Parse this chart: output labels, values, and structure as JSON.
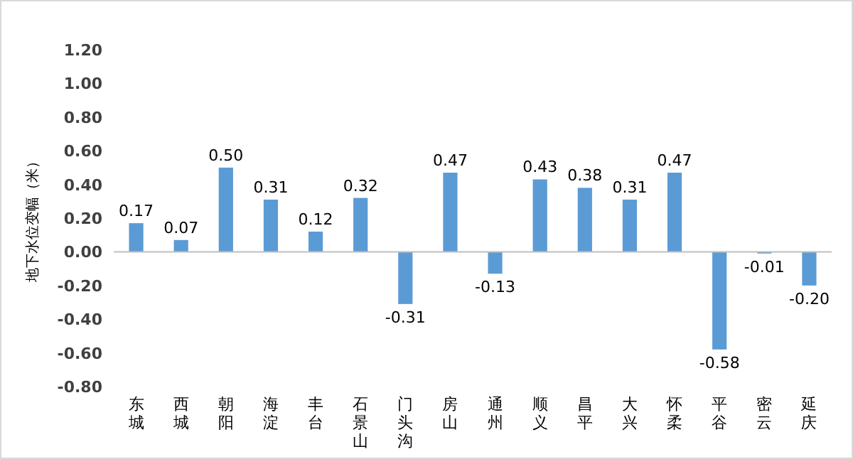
{
  "chart_data": {
    "type": "bar",
    "ylabel": "地下水位变幅（米）",
    "categories": [
      "东城",
      "西城",
      "朝阳",
      "海淀",
      "丰台",
      "石景山",
      "门头沟",
      "房山",
      "通州",
      "顺义",
      "昌平",
      "大兴",
      "怀柔",
      "平谷",
      "密云",
      "延庆"
    ],
    "values": [
      0.17,
      0.07,
      0.5,
      0.31,
      0.12,
      0.32,
      -0.31,
      0.47,
      -0.13,
      0.43,
      0.38,
      0.31,
      0.47,
      -0.58,
      -0.01,
      -0.2
    ],
    "value_labels": [
      "0.17",
      "0.07",
      "0.50",
      "0.31",
      "0.12",
      "0.32",
      "-0.31",
      "0.47",
      "-0.13",
      "0.43",
      "0.38",
      "0.31",
      "0.47",
      "-0.58",
      "-0.01",
      "-0.20"
    ],
    "color": "#5b9bd5",
    "ylim": [
      -0.8,
      1.2
    ],
    "yticks": [
      {
        "value": -0.8,
        "label": "-0.80"
      },
      {
        "value": -0.6,
        "label": "-0.60"
      },
      {
        "value": -0.4,
        "label": "-0.40"
      },
      {
        "value": -0.2,
        "label": "-0.20"
      },
      {
        "value": 0,
        "label": "0.00"
      },
      {
        "value": 0.2,
        "label": "0.20"
      },
      {
        "value": 0.4,
        "label": "0.40"
      },
      {
        "value": 0.6,
        "label": "0.60"
      },
      {
        "value": 0.8,
        "label": "0.80"
      },
      {
        "value": 1.0,
        "label": "1.00"
      },
      {
        "value": 1.2,
        "label": "1.20"
      }
    ]
  }
}
